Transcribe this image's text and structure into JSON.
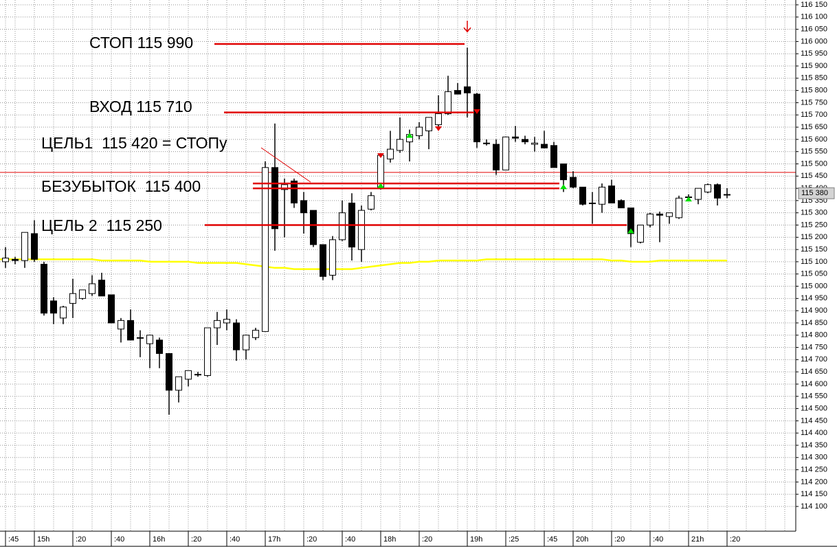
{
  "chart_data": {
    "type": "candlestick",
    "categories": [
      ":45",
      null,
      null,
      "15h",
      null,
      null,
      null,
      ":20",
      null,
      null,
      null,
      ":40",
      null,
      null,
      null,
      "16h",
      null,
      null,
      null,
      ":20",
      null,
      null,
      null,
      ":40",
      null,
      null,
      null,
      "17h",
      null,
      null,
      null,
      ":20",
      null,
      null,
      null,
      ":40",
      null,
      null,
      null,
      "18h",
      null,
      null,
      null,
      ":20",
      null,
      null,
      null,
      null,
      "19h",
      null,
      null,
      null,
      ":25",
      null,
      null,
      null,
      ":45",
      null,
      null,
      "20h",
      null,
      null,
      null,
      ":20",
      null,
      null,
      null,
      ":40",
      null,
      null,
      null,
      "21h",
      null,
      null,
      null,
      ":20"
    ],
    "open": [
      115100,
      115110,
      115105,
      115215,
      115090,
      114940,
      114870,
      114930,
      114950,
      114970,
      115025,
      114965,
      114825,
      114860,
      114790,
      114765,
      114780,
      114725,
      114575,
      114620,
      114640,
      114635,
      114830,
      114850,
      114850,
      114740,
      114790,
      114815,
      115485,
      115395,
      115430,
      115350,
      115310,
      115170,
      115045,
      115190,
      115340,
      115150,
      115315,
      115405,
      115520,
      115555,
      115590,
      115615,
      115635,
      115660,
      115705,
      115800,
      115815,
      115785,
      115585,
      115580,
      115475,
      115610,
      115600,
      115580,
      115580,
      115575,
      115500,
      115445,
      115405,
      115340,
      115335,
      115410,
      115350,
      115320,
      115180,
      115250,
      115295,
      115285,
      115280,
      115365,
      115355,
      115385,
      115415,
      115375
    ],
    "high": [
      115160,
      115120,
      115220,
      115270,
      115100,
      114955,
      114920,
      115030,
      114985,
      115045,
      115055,
      114965,
      114870,
      114905,
      114820,
      114800,
      114790,
      114725,
      114630,
      114655,
      114650,
      114830,
      114895,
      114905,
      114865,
      114800,
      114830,
      115510,
      115665,
      115440,
      115440,
      115385,
      115310,
      115170,
      115205,
      115350,
      115380,
      115330,
      115385,
      115540,
      115635,
      115690,
      115640,
      115670,
      115690,
      115780,
      115860,
      115830,
      115975,
      115790,
      115600,
      115600,
      115610,
      115655,
      115615,
      115610,
      115635,
      115590,
      115500,
      115470,
      115405,
      115385,
      115420,
      115435,
      115355,
      115320,
      115250,
      115300,
      115305,
      115300,
      115370,
      115375,
      115400,
      115420,
      115420,
      115400
    ],
    "low": [
      115075,
      115090,
      115075,
      115100,
      114880,
      114845,
      114845,
      114870,
      114945,
      114960,
      114960,
      114850,
      114770,
      114780,
      114710,
      114665,
      114665,
      114475,
      114525,
      114590,
      114630,
      114630,
      114760,
      114820,
      114695,
      114700,
      114780,
      114815,
      115145,
      115200,
      115320,
      115215,
      115160,
      115025,
      115025,
      115185,
      115105,
      115100,
      115310,
      115395,
      115505,
      115545,
      115510,
      115600,
      115560,
      115650,
      115700,
      115785,
      115690,
      115565,
      115575,
      115455,
      115475,
      115590,
      115580,
      115550,
      115565,
      115485,
      115385,
      115400,
      115330,
      115255,
      115300,
      115340,
      115320,
      115160,
      115175,
      115240,
      115180,
      115255,
      115275,
      115355,
      115335,
      115380,
      115330,
      115360
    ],
    "close": [
      115115,
      115105,
      115220,
      115110,
      114890,
      114890,
      114915,
      114970,
      114985,
      115010,
      114960,
      114850,
      114860,
      114780,
      114790,
      114800,
      114725,
      114575,
      114630,
      114655,
      114640,
      114830,
      114860,
      114865,
      114740,
      114800,
      114820,
      115485,
      115235,
      115415,
      115340,
      115300,
      115170,
      115040,
      115190,
      115300,
      115160,
      115310,
      115370,
      115535,
      115560,
      115600,
      115620,
      115650,
      115690,
      115705,
      115795,
      115785,
      115790,
      115590,
      115585,
      115475,
      115610,
      115605,
      115590,
      115585,
      115565,
      115485,
      115435,
      115405,
      115335,
      115340,
      115405,
      115340,
      115320,
      115215,
      115250,
      115295,
      115290,
      115300,
      115360,
      115365,
      115400,
      115415,
      115360,
      115375
    ],
    "up_color": "#ffffff",
    "down_color": "#000000",
    "moving_average": {
      "color": "#ffff00",
      "values": [
        115110,
        115110,
        115110,
        115110,
        115110,
        115110,
        115110,
        115110,
        115110,
        115110,
        115105,
        115105,
        115105,
        115105,
        115105,
        115100,
        115100,
        115100,
        115100,
        115100,
        115095,
        115095,
        115095,
        115095,
        115095,
        115090,
        115085,
        115080,
        115075,
        115075,
        115070,
        115070,
        115070,
        115070,
        115070,
        115070,
        115070,
        115075,
        115080,
        115085,
        115090,
        115095,
        115095,
        115100,
        115100,
        115105,
        115105,
        115105,
        115105,
        115105,
        115110,
        115110,
        115110,
        115110,
        115110,
        115110,
        115110,
        115110,
        115110,
        115110,
        115110,
        115110,
        115110,
        115105,
        115105,
        115100,
        115100,
        115100,
        115105,
        115105,
        115105,
        115105,
        115105,
        115105,
        115105,
        115105
      ]
    },
    "reference_line": {
      "value": 115465,
      "color": "#e00000"
    },
    "levels": [
      {
        "label": "СТОП 115 990",
        "value": 115990
      },
      {
        "label": "ВХОД 115 710",
        "value": 115710
      },
      {
        "label": "ЦЕЛЬ1  115 420 = СТОПу",
        "value": 115420
      },
      {
        "label": "БЕЗУБЫТОК  115 400",
        "value": 115400
      },
      {
        "label": "ЦЕЛЬ 2  115 250",
        "value": 115250
      }
    ],
    "level_color": "#e00000",
    "buy_signals": [
      {
        "index": 39,
        "value": 115410
      },
      {
        "index": 42,
        "value": 115615
      },
      {
        "index": 58,
        "value": 115405
      },
      {
        "index": 65,
        "value": 115225
      },
      {
        "index": 71,
        "value": 115355
      }
    ],
    "sell_signals": [
      {
        "index": 39,
        "value": 115535
      },
      {
        "index": 45,
        "value": 115645
      },
      {
        "index": 49,
        "value": 115715
      }
    ],
    "stop_arrow": {
      "index": 48,
      "value": 116040
    },
    "buy_color": "#00e000",
    "sell_color": "#e00000",
    "last_price": {
      "value": 115380,
      "label": "115 380"
    },
    "ylim": [
      114075,
      116165
    ],
    "yticks": [
      {
        "value": 116150,
        "label": "116 150"
      },
      {
        "value": 116100,
        "label": "116 100"
      },
      {
        "value": 116050,
        "label": "116 050"
      },
      {
        "value": 116000,
        "label": "116 000"
      },
      {
        "value": 115950,
        "label": "115 950"
      },
      {
        "value": 115900,
        "label": "115 900"
      },
      {
        "value": 115850,
        "label": "115 850"
      },
      {
        "value": 115800,
        "label": "115 800"
      },
      {
        "value": 115750,
        "label": "115 750"
      },
      {
        "value": 115700,
        "label": "115 700"
      },
      {
        "value": 115650,
        "label": "115 650"
      },
      {
        "value": 115600,
        "label": "115 600"
      },
      {
        "value": 115550,
        "label": "115 550"
      },
      {
        "value": 115500,
        "label": "115 500"
      },
      {
        "value": 115450,
        "label": "115 450"
      },
      {
        "value": 115400,
        "label": "115 400"
      },
      {
        "value": 115350,
        "label": "115 350"
      },
      {
        "value": 115300,
        "label": "115 300"
      },
      {
        "value": 115250,
        "label": "115 250"
      },
      {
        "value": 115200,
        "label": "115 200"
      },
      {
        "value": 115150,
        "label": "115 150"
      },
      {
        "value": 115100,
        "label": "115 100"
      },
      {
        "value": 115050,
        "label": "115 050"
      },
      {
        "value": 115000,
        "label": "115 000"
      },
      {
        "value": 114950,
        "label": "114 950"
      },
      {
        "value": 114900,
        "label": "114 900"
      },
      {
        "value": 114850,
        "label": "114 850"
      },
      {
        "value": 114800,
        "label": "114 800"
      },
      {
        "value": 114750,
        "label": "114 750"
      },
      {
        "value": 114700,
        "label": "114 700"
      },
      {
        "value": 114650,
        "label": "114 650"
      },
      {
        "value": 114600,
        "label": "114 600"
      },
      {
        "value": 114550,
        "label": "114 550"
      },
      {
        "value": 114500,
        "label": "114 500"
      },
      {
        "value": 114450,
        "label": "114 450"
      },
      {
        "value": 114400,
        "label": "114 400"
      },
      {
        "value": 114350,
        "label": "114 350"
      },
      {
        "value": 114300,
        "label": "114 300"
      },
      {
        "value": 114250,
        "label": "114 250"
      },
      {
        "value": 114200,
        "label": "114 200"
      },
      {
        "value": 114150,
        "label": "114 150"
      },
      {
        "value": 114100,
        "label": "114 100"
      }
    ],
    "grid": true
  }
}
